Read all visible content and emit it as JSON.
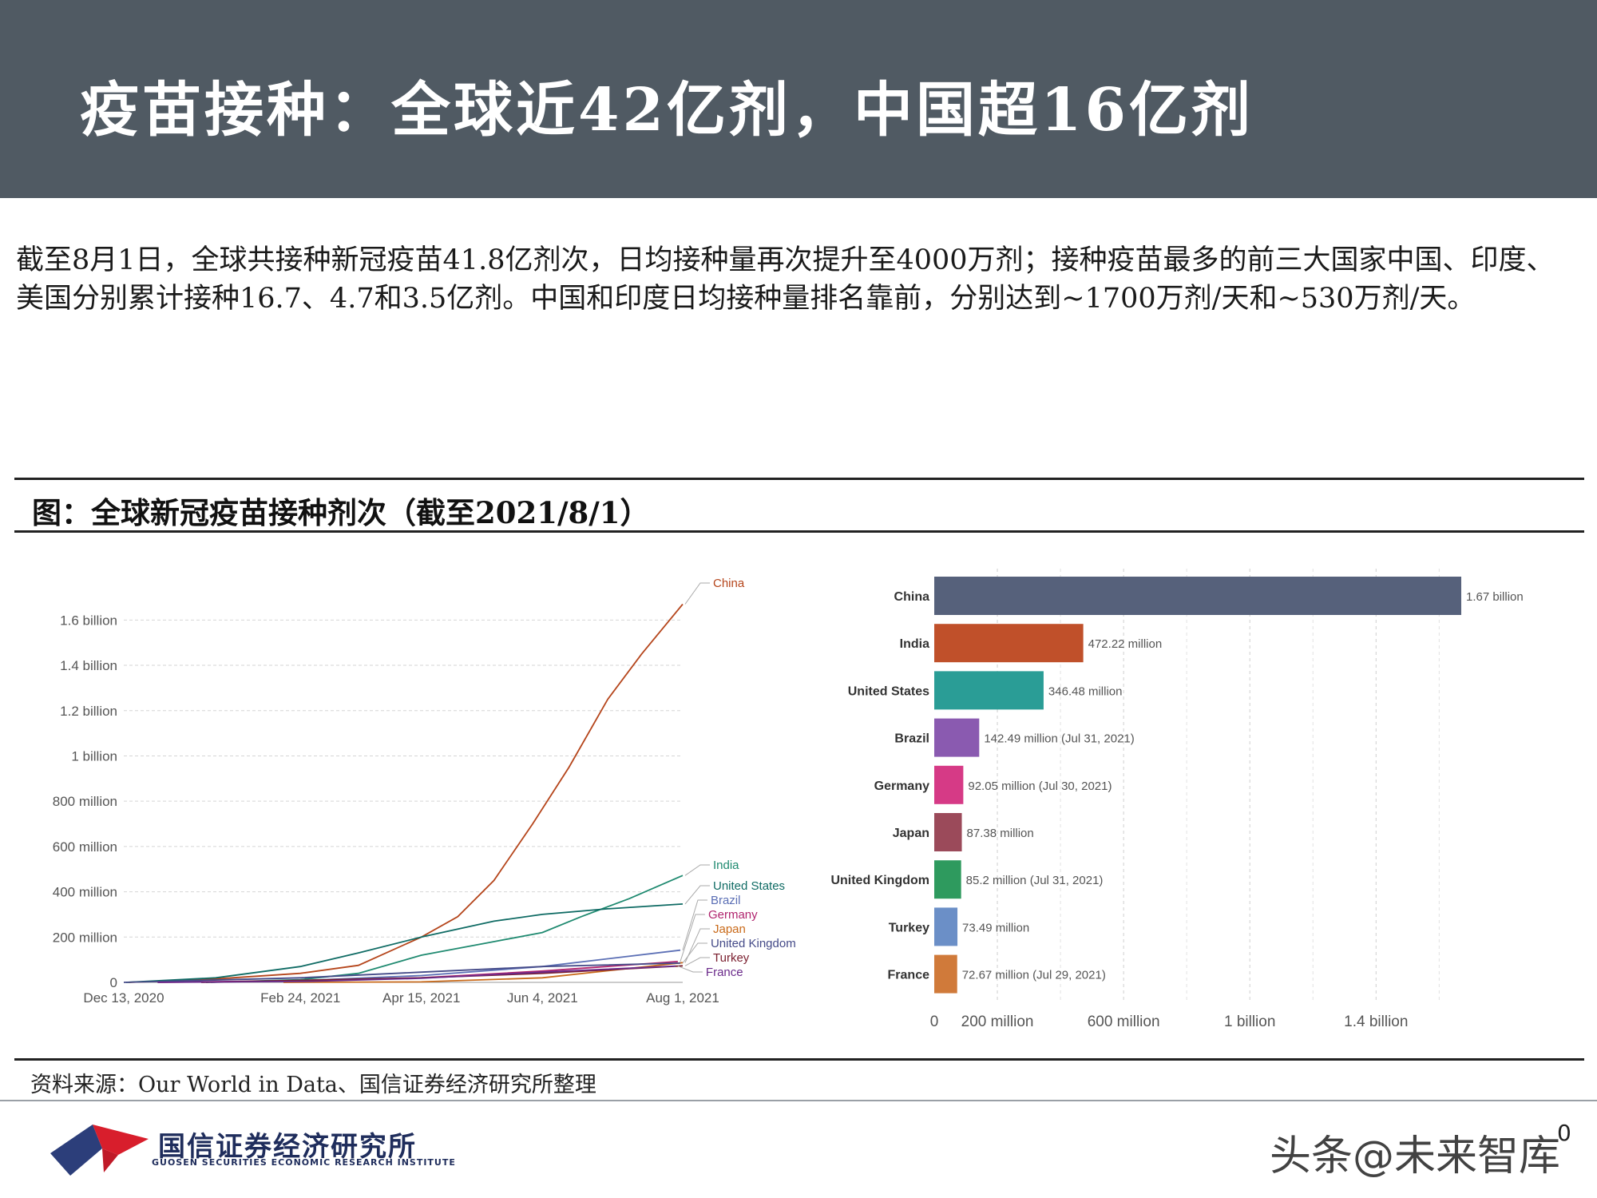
{
  "header": {
    "title": "疫苗接种：全球近42亿剂，中国超16亿剂"
  },
  "summary": {
    "text": "截至8月1日，全球共接种新冠疫苗41.8亿剂次，日均接种量再次提升至4000万剂；接种疫苗最多的前三大国家中国、印度、美国分别累计接种16.7、4.7和3.5亿剂。中国和印度日均接种量排名靠前，分别达到~1700万剂/天和~530万剂/天。"
  },
  "figure": {
    "title": "图：全球新冠疫苗接种剂次（截至2021/8/1）"
  },
  "source": {
    "text": "资料来源：Our World in Data、国信证券经济研究所整理"
  },
  "footer": {
    "org_name": "国信证券经济研究所",
    "org_name_en": "GUOSEN SECURITIES ECONOMIC RESEARCH INSTITUTE",
    "watermark": "头条@未来智库",
    "page_number": "0"
  },
  "chart_data": [
    {
      "type": "line",
      "x_ticks": [
        "Dec 13, 2020",
        "Feb 24, 2021",
        "Apr 15, 2021",
        "Jun 4, 2021",
        "Aug 1, 2021"
      ],
      "y_ticks": [
        "0",
        "200 million",
        "400 million",
        "600 million",
        "800 million",
        "1 billion",
        "1.2 billion",
        "1.4 billion",
        "1.6 billion"
      ],
      "ylim": [
        0,
        1700000000
      ],
      "xlim": [
        "2020-12-13",
        "2021-08-01"
      ],
      "grid": "horizontal",
      "series": [
        {
          "name": "China",
          "color": "#b5451b",
          "x": [
            "2020-12-15",
            "2021-01-20",
            "2021-02-24",
            "2021-03-20",
            "2021-04-15",
            "2021-04-30",
            "2021-05-15",
            "2021-05-31",
            "2021-06-15",
            "2021-07-01",
            "2021-07-15",
            "2021-08-01"
          ],
          "y": [
            0,
            15000000,
            40000000,
            75000000,
            200000000,
            290000000,
            450000000,
            700000000,
            950000000,
            1250000000,
            1450000000,
            1670000000
          ]
        },
        {
          "name": "India",
          "color": "#1f8a70",
          "x": [
            "2021-01-16",
            "2021-02-24",
            "2021-03-20",
            "2021-04-15",
            "2021-05-15",
            "2021-06-04",
            "2021-06-20",
            "2021-07-10",
            "2021-08-01"
          ],
          "y": [
            0,
            12000000,
            40000000,
            120000000,
            180000000,
            220000000,
            290000000,
            370000000,
            472000000
          ]
        },
        {
          "name": "United States",
          "color": "#0f6b64",
          "x": [
            "2020-12-14",
            "2021-01-20",
            "2021-02-24",
            "2021-03-20",
            "2021-04-15",
            "2021-05-15",
            "2021-06-04",
            "2021-07-01",
            "2021-08-01"
          ],
          "y": [
            0,
            20000000,
            70000000,
            130000000,
            200000000,
            270000000,
            300000000,
            325000000,
            346000000
          ]
        },
        {
          "name": "Brazil",
          "color": "#5b6fb5",
          "x": [
            "2021-01-18",
            "2021-03-01",
            "2021-04-15",
            "2021-06-04",
            "2021-07-31"
          ],
          "y": [
            0,
            10000000,
            30000000,
            70000000,
            142000000
          ]
        },
        {
          "name": "Germany",
          "color": "#b0246e",
          "x": [
            "2020-12-27",
            "2021-03-01",
            "2021-04-15",
            "2021-06-04",
            "2021-07-30"
          ],
          "y": [
            0,
            8000000,
            20000000,
            50000000,
            92000000
          ]
        },
        {
          "name": "Japan",
          "color": "#c96a1a",
          "x": [
            "2021-02-17",
            "2021-04-15",
            "2021-06-04",
            "2021-08-01"
          ],
          "y": [
            0,
            2000000,
            20000000,
            87000000
          ]
        },
        {
          "name": "United Kingdom",
          "color": "#444a88",
          "x": [
            "2020-12-13",
            "2021-02-24",
            "2021-04-15",
            "2021-06-04",
            "2021-07-31"
          ],
          "y": [
            0,
            20000000,
            45000000,
            70000000,
            85000000
          ]
        },
        {
          "name": "Turkey",
          "color": "#7a1e2e",
          "x": [
            "2021-01-14",
            "2021-03-01",
            "2021-04-15",
            "2021-06-04",
            "2021-08-01"
          ],
          "y": [
            0,
            10000000,
            20000000,
            40000000,
            73000000
          ]
        },
        {
          "name": "France",
          "color": "#6a2a8a",
          "x": [
            "2020-12-27",
            "2021-03-01",
            "2021-04-15",
            "2021-06-04",
            "2021-07-29"
          ],
          "y": [
            0,
            5000000,
            18000000,
            45000000,
            72000000
          ]
        }
      ]
    },
    {
      "type": "bar",
      "orientation": "horizontal",
      "categories": [
        "China",
        "India",
        "United States",
        "Brazil",
        "Germany",
        "Japan",
        "United Kingdom",
        "Turkey",
        "France"
      ],
      "values": [
        1670000000,
        472220000,
        346480000,
        142490000,
        92050000,
        87380000,
        85200000,
        73490000,
        72670000
      ],
      "labels": [
        "1.67 billion",
        "472.22 million",
        "346.48 million",
        "142.49 million (Jul 31, 2021)",
        "92.05 million (Jul 30, 2021)",
        "87.38 million",
        "85.2 million (Jul 31, 2021)",
        "73.49 million",
        "72.67 million (Jul 29, 2021)"
      ],
      "colors": [
        "#56617b",
        "#c0502a",
        "#2a9d96",
        "#8a5ab0",
        "#d63a86",
        "#9b4a5a",
        "#2e9a5e",
        "#6b8fc7",
        "#d07a3a"
      ],
      "x_ticks": [
        "0",
        "200 million",
        "600 million",
        "1 billion",
        "1.4 billion"
      ],
      "x_tick_values": [
        0,
        200000000,
        600000000,
        1000000000,
        1400000000
      ],
      "xlim": [
        0,
        1670000000
      ],
      "grid": "vertical-dashed"
    }
  ]
}
